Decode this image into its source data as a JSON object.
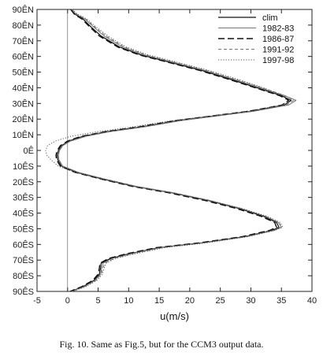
{
  "caption": "Fig. 10. Same as Fig.5, but for the CCM3 output data.",
  "chart_data": {
    "type": "line",
    "title": "",
    "xlabel": "u(m/s)",
    "ylabel": "",
    "xlim": [
      -5,
      40
    ],
    "ylim": [
      -90,
      90
    ],
    "x_ticks": [
      -5,
      0,
      5,
      10,
      15,
      20,
      25,
      30,
      35,
      40
    ],
    "x_tick_labels": [
      "-5",
      "0",
      "5",
      "10",
      "15",
      "20",
      "25",
      "30",
      "35",
      "40"
    ],
    "y_ticks": [
      90,
      80,
      70,
      60,
      50,
      40,
      30,
      20,
      10,
      0,
      -10,
      -20,
      -30,
      -40,
      -50,
      -60,
      -70,
      -80,
      -90
    ],
    "y_tick_labels": [
      "90ÊN",
      "80ÊN",
      "70ÊN",
      "60ÊN",
      "50ÊN",
      "40ÊN",
      "30ÊN",
      "20ÊN",
      "10ÊN",
      "0Ê",
      "10ÊS",
      "20ÊS",
      "30ÊS",
      "40ÊS",
      "50ÊS",
      "60ÊS",
      "70ÊS",
      "80ÊS",
      "90ÊS"
    ],
    "zero_line": 0,
    "grid": false,
    "legend_position": "top-right",
    "series": [
      {
        "name": "clim",
        "style": "solid-black",
        "points": [
          [
            0.5,
            90
          ],
          [
            1.2,
            87
          ],
          [
            2.5,
            84
          ],
          [
            3.8,
            79
          ],
          [
            5.5,
            73
          ],
          [
            8.5,
            66
          ],
          [
            12,
            61
          ],
          [
            17,
            56
          ],
          [
            22,
            51
          ],
          [
            27,
            45
          ],
          [
            31,
            40
          ],
          [
            35,
            35
          ],
          [
            36.6,
            32
          ],
          [
            35.5,
            29
          ],
          [
            30,
            25
          ],
          [
            24,
            22
          ],
          [
            18,
            19
          ],
          [
            12,
            15
          ],
          [
            6.5,
            12
          ],
          [
            2.5,
            9
          ],
          [
            0.2,
            6
          ],
          [
            -1,
            3
          ],
          [
            -1.5,
            0
          ],
          [
            -1.7,
            -3
          ],
          [
            -1.6,
            -6
          ],
          [
            -1,
            -10
          ],
          [
            1.5,
            -14
          ],
          [
            5.5,
            -18
          ],
          [
            11,
            -23
          ],
          [
            17,
            -27
          ],
          [
            23,
            -32
          ],
          [
            28,
            -37
          ],
          [
            32,
            -42
          ],
          [
            34.2,
            -46
          ],
          [
            34.6,
            -49
          ],
          [
            33.5,
            -51
          ],
          [
            29,
            -55
          ],
          [
            22,
            -59
          ],
          [
            15,
            -62
          ],
          [
            10,
            -66
          ],
          [
            7,
            -69
          ],
          [
            5.5,
            -72
          ],
          [
            5.4,
            -75
          ],
          [
            5.2,
            -79
          ],
          [
            4.3,
            -83
          ],
          [
            2.5,
            -87
          ],
          [
            0.5,
            -90
          ]
        ]
      },
      {
        "name": "1982-83",
        "style": "solid-gray",
        "points": [
          [
            0.6,
            90
          ],
          [
            1.4,
            87
          ],
          [
            2.8,
            84
          ],
          [
            4.2,
            79
          ],
          [
            6,
            73
          ],
          [
            9,
            66
          ],
          [
            12.5,
            61
          ],
          [
            17.5,
            56
          ],
          [
            22.5,
            51
          ],
          [
            27.5,
            45
          ],
          [
            31.5,
            40
          ],
          [
            35.5,
            35
          ],
          [
            37.4,
            32
          ],
          [
            36.2,
            29
          ],
          [
            30.5,
            25
          ],
          [
            24.5,
            22
          ],
          [
            18.5,
            19
          ],
          [
            12.5,
            15
          ],
          [
            7,
            12
          ],
          [
            3,
            9
          ],
          [
            0.5,
            6
          ],
          [
            -0.8,
            3
          ],
          [
            -1.3,
            0
          ],
          [
            -1.5,
            -3
          ],
          [
            -1.4,
            -6
          ],
          [
            -0.8,
            -10
          ],
          [
            1.8,
            -14
          ],
          [
            5.8,
            -18
          ],
          [
            11.3,
            -23
          ],
          [
            17.3,
            -27
          ],
          [
            23.3,
            -32
          ],
          [
            28.3,
            -37
          ],
          [
            32.3,
            -42
          ],
          [
            34.5,
            -46
          ],
          [
            35,
            -49
          ],
          [
            33.8,
            -51
          ],
          [
            29.3,
            -55
          ],
          [
            22.3,
            -59
          ],
          [
            15.3,
            -62
          ],
          [
            10.3,
            -66
          ],
          [
            7.3,
            -69
          ],
          [
            5.8,
            -72
          ],
          [
            5.6,
            -75
          ],
          [
            5.4,
            -79
          ],
          [
            4.5,
            -83
          ],
          [
            2.7,
            -87
          ],
          [
            0.6,
            -90
          ]
        ]
      },
      {
        "name": "1986-87",
        "style": "long-dash",
        "points": [
          [
            0.5,
            90
          ],
          [
            1.1,
            87
          ],
          [
            2.3,
            84
          ],
          [
            3.6,
            79
          ],
          [
            5.2,
            73
          ],
          [
            8.2,
            66
          ],
          [
            11.7,
            61
          ],
          [
            16.7,
            56
          ],
          [
            21.7,
            51
          ],
          [
            26.7,
            45
          ],
          [
            30.7,
            40
          ],
          [
            34.7,
            35
          ],
          [
            36.2,
            32
          ],
          [
            35.1,
            29
          ],
          [
            29.6,
            25
          ],
          [
            23.6,
            22
          ],
          [
            17.6,
            19
          ],
          [
            11.6,
            15
          ],
          [
            6.2,
            12
          ],
          [
            2.2,
            9
          ],
          [
            0,
            6
          ],
          [
            -1.2,
            3
          ],
          [
            -1.7,
            0
          ],
          [
            -1.9,
            -3
          ],
          [
            -1.8,
            -6
          ],
          [
            -1.2,
            -10
          ],
          [
            1.2,
            -14
          ],
          [
            5.2,
            -18
          ],
          [
            10.6,
            -23
          ],
          [
            16.5,
            -27
          ],
          [
            22.5,
            -32
          ],
          [
            27.6,
            -37
          ],
          [
            31.6,
            -42
          ],
          [
            33.9,
            -46
          ],
          [
            34.2,
            -49
          ],
          [
            33.1,
            -51
          ],
          [
            28.6,
            -55
          ],
          [
            21.6,
            -59
          ],
          [
            14.6,
            -62
          ],
          [
            9.6,
            -66
          ],
          [
            6.7,
            -69
          ],
          [
            5.3,
            -72
          ],
          [
            5.2,
            -75
          ],
          [
            5,
            -79
          ],
          [
            4.1,
            -83
          ],
          [
            2.3,
            -87
          ],
          [
            0.4,
            -90
          ]
        ]
      },
      {
        "name": "1991-92",
        "style": "short-dash",
        "points": [
          [
            0.7,
            90
          ],
          [
            1.5,
            87
          ],
          [
            2.9,
            84
          ],
          [
            4.4,
            79
          ],
          [
            6.3,
            73
          ],
          [
            9.3,
            66
          ],
          [
            12.8,
            61
          ],
          [
            17.8,
            56
          ],
          [
            22.8,
            51
          ],
          [
            27.8,
            45
          ],
          [
            31.8,
            40
          ],
          [
            35.6,
            35
          ],
          [
            37,
            32
          ],
          [
            35.8,
            29
          ],
          [
            30.3,
            25
          ],
          [
            24.3,
            22
          ],
          [
            18.3,
            19
          ],
          [
            12.3,
            15
          ],
          [
            6.8,
            12
          ],
          [
            2.8,
            9
          ],
          [
            0.4,
            6
          ],
          [
            -0.9,
            3
          ],
          [
            -1.4,
            0
          ],
          [
            -1.6,
            -3
          ],
          [
            -1.5,
            -6
          ],
          [
            -0.9,
            -10
          ],
          [
            1.7,
            -14
          ],
          [
            5.9,
            -18
          ],
          [
            11.4,
            -23
          ],
          [
            17.4,
            -27
          ],
          [
            23.4,
            -32
          ],
          [
            28.4,
            -37
          ],
          [
            32.4,
            -42
          ],
          [
            34.6,
            -46
          ],
          [
            35,
            -49
          ],
          [
            33.9,
            -51
          ],
          [
            29.4,
            -55
          ],
          [
            22.4,
            -59
          ],
          [
            15.6,
            -62
          ],
          [
            10.6,
            -66
          ],
          [
            7.6,
            -69
          ],
          [
            6.1,
            -72
          ],
          [
            5.8,
            -75
          ],
          [
            5.5,
            -79
          ],
          [
            4.6,
            -83
          ],
          [
            2.8,
            -87
          ],
          [
            0.7,
            -90
          ]
        ]
      },
      {
        "name": "1997-98",
        "style": "dotted",
        "points": [
          [
            0.8,
            90
          ],
          [
            1.6,
            87
          ],
          [
            3.1,
            84
          ],
          [
            4.6,
            79
          ],
          [
            6.6,
            73
          ],
          [
            9.6,
            66
          ],
          [
            13.2,
            61
          ],
          [
            18.2,
            56
          ],
          [
            23.2,
            51
          ],
          [
            28.2,
            45
          ],
          [
            32,
            40
          ],
          [
            35.4,
            35
          ],
          [
            36.4,
            32
          ],
          [
            35,
            29
          ],
          [
            29.4,
            25
          ],
          [
            23.4,
            22
          ],
          [
            17,
            19
          ],
          [
            10.5,
            15
          ],
          [
            5,
            12
          ],
          [
            0.5,
            9
          ],
          [
            -2,
            6
          ],
          [
            -3.3,
            3
          ],
          [
            -3.6,
            0
          ],
          [
            -3.4,
            -3
          ],
          [
            -2.7,
            -6
          ],
          [
            -1.5,
            -10
          ],
          [
            1.2,
            -14
          ],
          [
            5.2,
            -18
          ],
          [
            10.8,
            -23
          ],
          [
            17,
            -27
          ],
          [
            23.2,
            -32
          ],
          [
            28.5,
            -37
          ],
          [
            32.6,
            -42
          ],
          [
            34.8,
            -46
          ],
          [
            35.2,
            -49
          ],
          [
            34,
            -51
          ],
          [
            29.6,
            -55
          ],
          [
            22.8,
            -59
          ],
          [
            16,
            -62
          ],
          [
            11,
            -66
          ],
          [
            7.8,
            -69
          ],
          [
            6.3,
            -72
          ],
          [
            6,
            -75
          ],
          [
            5.7,
            -79
          ],
          [
            4.8,
            -83
          ],
          [
            3,
            -87
          ],
          [
            0.8,
            -90
          ]
        ]
      }
    ]
  }
}
